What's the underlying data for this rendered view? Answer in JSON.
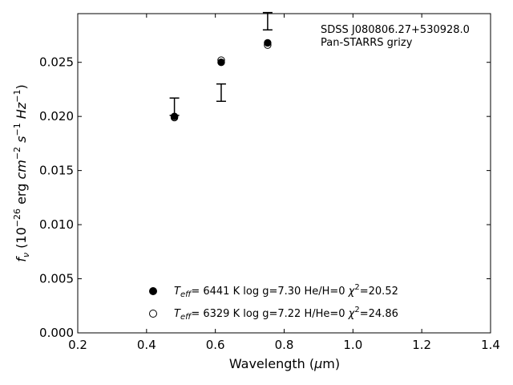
{
  "chart_data": {
    "type": "scatter",
    "title": "",
    "xlabel": "Wavelength (μm)",
    "ylabel": "f_ν (10^-26 erg cm^-2 s^-1 Hz^-1)",
    "xlim": [
      0.2,
      1.4
    ],
    "ylim": [
      0.0,
      0.0295
    ],
    "x_ticks": [
      "0.2",
      "0.4",
      "0.6",
      "0.8",
      "1.0",
      "1.2",
      "1.4"
    ],
    "y_ticks": [
      "0.000",
      "0.005",
      "0.010",
      "0.015",
      "0.020",
      "0.025"
    ],
    "grid": false,
    "annotations": [
      "SDSS J080806.27+530928.0",
      "Pan-STARRS grizy"
    ],
    "observed": {
      "type": "errorbar",
      "points": [
        {
          "x": 0.481,
          "y": 0.0209,
          "err": 0.0008
        },
        {
          "x": 0.617,
          "y": 0.0222,
          "err": 0.0008
        },
        {
          "x": 0.752,
          "y": 0.0288,
          "err": 0.0008
        }
      ]
    },
    "series": [
      {
        "marker": "filled",
        "label_teff": "6441 K",
        "label_logg": "log g=7.30",
        "label_comp": "He/H=0",
        "label_chi2": "=20.52",
        "points": [
          {
            "x": 0.481,
            "y": 0.02
          },
          {
            "x": 0.617,
            "y": 0.025
          },
          {
            "x": 0.752,
            "y": 0.0268
          }
        ]
      },
      {
        "marker": "open",
        "label_teff": "6329 K",
        "label_logg": "log g=7.22",
        "label_comp": "H/He=0",
        "label_chi2": "=24.86",
        "points": [
          {
            "x": 0.481,
            "y": 0.0199
          },
          {
            "x": 0.617,
            "y": 0.0252
          },
          {
            "x": 0.752,
            "y": 0.0266
          }
        ]
      }
    ]
  }
}
